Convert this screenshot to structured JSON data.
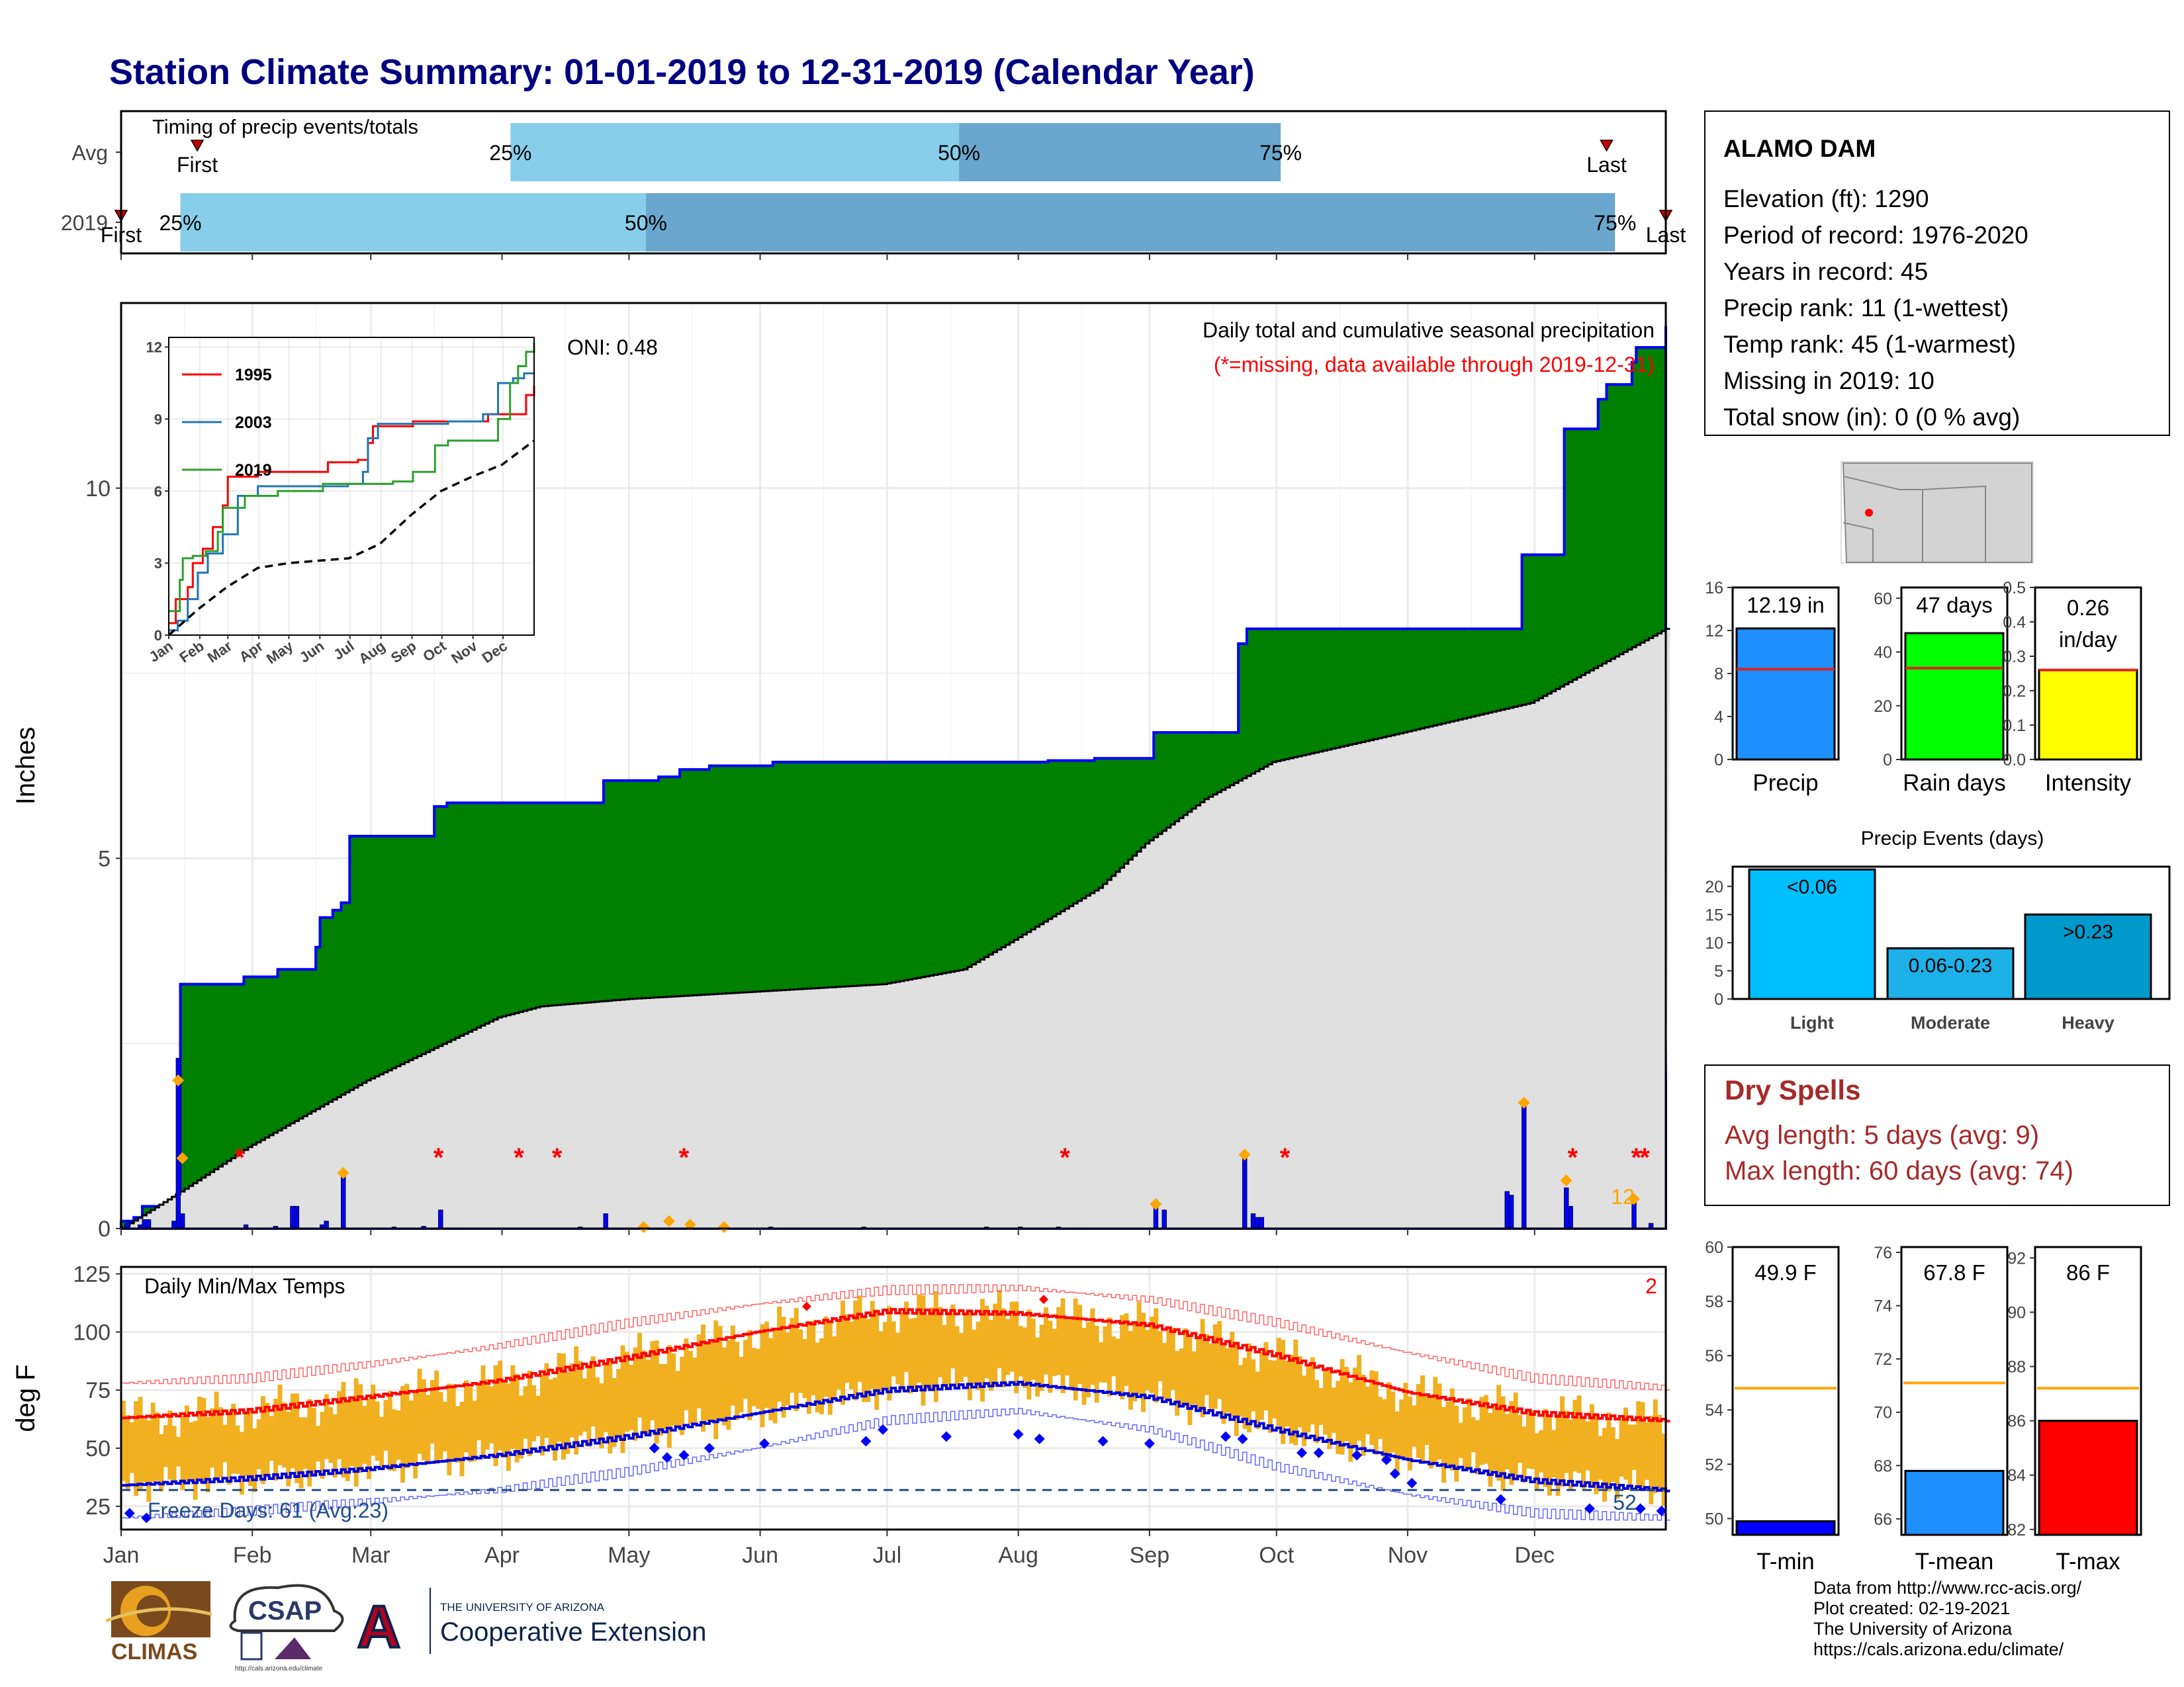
{
  "title": "Station Climate Summary: 01-01-2019 to 12-31-2019 (Calendar Year)",
  "colors": {
    "title": "#000080",
    "cum_precip": "#008000",
    "avg_precip": "#e0e0e0",
    "daily_bars": "#0000ff",
    "timing_light": "#87ceeb",
    "timing_dark": "#6aa6cd",
    "temp_bar": "#f0b020",
    "max_line": "#ff0000",
    "min_line": "#0000dd",
    "dry_spell_text": "#a52a2a"
  },
  "months": [
    "Jan",
    "Feb",
    "Mar",
    "Apr",
    "May",
    "Jun",
    "Jul",
    "Aug",
    "Sep",
    "Oct",
    "Nov",
    "Dec"
  ],
  "timing": {
    "label": "Timing of precip events/totals",
    "rows": [
      {
        "name": "Avg",
        "first": "First",
        "last": "Last",
        "first_day": 19,
        "last_day": 352,
        "p25": 93,
        "p50": 199,
        "p75": 275,
        "l25": "25%",
        "l50": "50%",
        "l75": "75%"
      },
      {
        "name": "2019",
        "first": "First",
        "last": "Last",
        "first_day": 1,
        "last_day": 366,
        "p25": 15,
        "p50": 125,
        "p75": 354,
        "l25": "25%",
        "l50": "50%",
        "l75": "75%"
      }
    ]
  },
  "precip": {
    "ylabel": "Inches",
    "ylim": [
      0,
      12.5
    ],
    "yticks": [
      0,
      5,
      10
    ],
    "oni": "ONI: 0.48",
    "header": "Daily total and cumulative seasonal precipitation",
    "note": "(*=missing, data available through 2019-12-31)",
    "corner_value": "12",
    "cumulative_steps": [
      [
        1,
        0.1
      ],
      [
        4,
        0.15
      ],
      [
        6,
        0.3
      ],
      [
        14,
        0.45
      ],
      [
        15,
        3.3
      ],
      [
        29,
        3.3
      ],
      [
        30,
        3.4
      ],
      [
        38,
        3.5
      ],
      [
        46,
        3.5
      ],
      [
        47,
        3.8
      ],
      [
        48,
        4.2
      ],
      [
        51,
        4.3
      ],
      [
        53,
        4.4
      ],
      [
        55,
        5.3
      ],
      [
        67,
        5.3
      ],
      [
        75,
        5.7
      ],
      [
        78,
        5.75
      ],
      [
        106,
        5.75
      ],
      [
        115,
        6.05
      ],
      [
        128,
        6.1
      ],
      [
        133,
        6.2
      ],
      [
        140,
        6.25
      ],
      [
        155,
        6.3
      ],
      [
        212,
        6.3
      ],
      [
        220,
        6.32
      ],
      [
        231,
        6.35
      ],
      [
        245,
        6.7
      ],
      [
        265,
        7.9
      ],
      [
        267,
        8.1
      ],
      [
        329,
        8.1
      ],
      [
        332,
        9.1
      ],
      [
        342,
        10.8
      ],
      [
        350,
        11.2
      ],
      [
        352,
        11.4
      ],
      [
        358,
        11.7
      ],
      [
        359,
        11.9
      ],
      [
        366,
        12.19
      ]
    ],
    "average_cumulative": [
      [
        1,
        0
      ],
      [
        15,
        0.5
      ],
      [
        31,
        1.1
      ],
      [
        59,
        2.0
      ],
      [
        90,
        2.85
      ],
      [
        100,
        3.0
      ],
      [
        121,
        3.1
      ],
      [
        151,
        3.2
      ],
      [
        181,
        3.3
      ],
      [
        200,
        3.5
      ],
      [
        212,
        3.9
      ],
      [
        232,
        4.6
      ],
      [
        243,
        5.2
      ],
      [
        257,
        5.8
      ],
      [
        273,
        6.3
      ],
      [
        304,
        6.7
      ],
      [
        334,
        7.1
      ],
      [
        366,
        8.1
      ]
    ],
    "daily_bars": [
      [
        2,
        0.1
      ],
      [
        5,
        0.05
      ],
      [
        6,
        0.12
      ],
      [
        7,
        0.12
      ],
      [
        13,
        0.1
      ],
      [
        14,
        2.3
      ],
      [
        15,
        0.2
      ],
      [
        30,
        0.05
      ],
      [
        37,
        0.03
      ],
      [
        41,
        0.3
      ],
      [
        42,
        0.3
      ],
      [
        48,
        0.05
      ],
      [
        49,
        0.1
      ],
      [
        53,
        0.75
      ],
      [
        65,
        0.02
      ],
      [
        72,
        0.03
      ],
      [
        76,
        0.25
      ],
      [
        109,
        0.02
      ],
      [
        115,
        0.2
      ],
      [
        124,
        0.03
      ],
      [
        135,
        0.02
      ],
      [
        154,
        0.02
      ],
      [
        176,
        0.02
      ],
      [
        205,
        0.02
      ],
      [
        213,
        0.02
      ],
      [
        222,
        0.02
      ],
      [
        245,
        0.3
      ],
      [
        247,
        0.25
      ],
      [
        266,
        1.0
      ],
      [
        268,
        0.2
      ],
      [
        269,
        0.15
      ],
      [
        270,
        0.15
      ],
      [
        328,
        0.5
      ],
      [
        329,
        0.45
      ],
      [
        332,
        1.7
      ],
      [
        342,
        0.55
      ],
      [
        343,
        0.3
      ],
      [
        358,
        0.4
      ],
      [
        362,
        0.07
      ]
    ],
    "orange_markers": [
      [
        14,
        2.0
      ],
      [
        15,
        0.95
      ],
      [
        53,
        0.75
      ],
      [
        124,
        0.02
      ],
      [
        130,
        0.1
      ],
      [
        135,
        0.05
      ],
      [
        143,
        0.02
      ],
      [
        245,
        0.33
      ],
      [
        266,
        1.0
      ],
      [
        332,
        1.7
      ],
      [
        342,
        0.65
      ],
      [
        358,
        0.4
      ]
    ],
    "missing_markers": [
      [
        29,
        1.0
      ],
      [
        76,
        1.0
      ],
      [
        95,
        1.0
      ],
      [
        104,
        1.0
      ],
      [
        134,
        1.0
      ],
      [
        224,
        1.0
      ],
      [
        276,
        1.0
      ],
      [
        344,
        1.0
      ],
      [
        359,
        1.0
      ],
      [
        361,
        1.0
      ]
    ]
  },
  "inset": {
    "ylim": [
      0,
      12
    ],
    "yticks": [
      0,
      3,
      6,
      9,
      12
    ],
    "legend": [
      "1995",
      "2003",
      "2019"
    ],
    "colors": [
      "#ff0000",
      "#1f77b4",
      "#2ca02c"
    ],
    "series": [
      [
        [
          1,
          0.5
        ],
        [
          8,
          1.5
        ],
        [
          20,
          2.0
        ],
        [
          25,
          3.0
        ],
        [
          35,
          3.6
        ],
        [
          45,
          4.5
        ],
        [
          55,
          5.4
        ],
        [
          60,
          6.6
        ],
        [
          90,
          6.8
        ],
        [
          150,
          6.8
        ],
        [
          160,
          7.2
        ],
        [
          190,
          7.3
        ],
        [
          200,
          8.0
        ],
        [
          205,
          8.7
        ],
        [
          235,
          8.7
        ],
        [
          245,
          8.9
        ],
        [
          300,
          8.9
        ],
        [
          320,
          9.2
        ],
        [
          345,
          9.2
        ],
        [
          358,
          10.0
        ],
        [
          366,
          10.4
        ]
      ],
      [
        [
          1,
          0.2
        ],
        [
          10,
          0.6
        ],
        [
          20,
          1.5
        ],
        [
          30,
          2.6
        ],
        [
          40,
          3.4
        ],
        [
          55,
          4.2
        ],
        [
          70,
          5.8
        ],
        [
          90,
          6.2
        ],
        [
          150,
          6.2
        ],
        [
          180,
          6.3
        ],
        [
          195,
          6.8
        ],
        [
          200,
          8.2
        ],
        [
          210,
          8.8
        ],
        [
          280,
          8.9
        ],
        [
          315,
          9.2
        ],
        [
          330,
          10.5
        ],
        [
          345,
          10.7
        ],
        [
          356,
          10.9
        ],
        [
          366,
          10.9
        ]
      ],
      [
        [
          1,
          1.0
        ],
        [
          12,
          2.3
        ],
        [
          15,
          3.2
        ],
        [
          25,
          3.3
        ],
        [
          38,
          3.5
        ],
        [
          50,
          4.3
        ],
        [
          55,
          5.3
        ],
        [
          77,
          5.8
        ],
        [
          110,
          6.0
        ],
        [
          155,
          6.3
        ],
        [
          225,
          6.4
        ],
        [
          245,
          6.8
        ],
        [
          267,
          7.9
        ],
        [
          280,
          8.1
        ],
        [
          330,
          9.0
        ],
        [
          342,
          10.5
        ],
        [
          350,
          11.2
        ],
        [
          358,
          11.8
        ],
        [
          366,
          12.2
        ]
      ]
    ],
    "average": [
      [
        1,
        0
      ],
      [
        31,
        1.1
      ],
      [
        59,
        2.0
      ],
      [
        90,
        2.8
      ],
      [
        121,
        3.0
      ],
      [
        181,
        3.2
      ],
      [
        212,
        3.8
      ],
      [
        243,
        5.0
      ],
      [
        273,
        6.0
      ],
      [
        304,
        6.6
      ],
      [
        334,
        7.1
      ],
      [
        366,
        8.1
      ]
    ]
  },
  "temps": {
    "ylabel": "deg F",
    "header": "Daily Min/Max Temps",
    "ylim": [
      15,
      128
    ],
    "yticks": [
      25,
      50,
      75,
      100,
      125
    ],
    "freeze_label": "Freeze Days: 61 (Avg:23)",
    "freeze_count": "52",
    "corner_count": "2",
    "freeze_line": 32,
    "max_avg_curve": [
      [
        1,
        63
      ],
      [
        31,
        66
      ],
      [
        59,
        72
      ],
      [
        90,
        79
      ],
      [
        121,
        89
      ],
      [
        151,
        100
      ],
      [
        182,
        109
      ],
      [
        213,
        108
      ],
      [
        244,
        103
      ],
      [
        274,
        90
      ],
      [
        305,
        74
      ],
      [
        335,
        65
      ],
      [
        366,
        62
      ]
    ],
    "min_avg_curve": [
      [
        1,
        34
      ],
      [
        31,
        37
      ],
      [
        59,
        41
      ],
      [
        90,
        47
      ],
      [
        121,
        55
      ],
      [
        151,
        65
      ],
      [
        182,
        75
      ],
      [
        213,
        78
      ],
      [
        244,
        72
      ],
      [
        274,
        58
      ],
      [
        305,
        45
      ],
      [
        335,
        36
      ],
      [
        366,
        32
      ]
    ],
    "record_max_curve": [
      [
        1,
        78
      ],
      [
        31,
        80
      ],
      [
        59,
        86
      ],
      [
        90,
        94
      ],
      [
        121,
        104
      ],
      [
        151,
        112
      ],
      [
        182,
        118
      ],
      [
        213,
        119
      ],
      [
        244,
        114
      ],
      [
        274,
        104
      ],
      [
        305,
        91
      ],
      [
        335,
        80
      ],
      [
        366,
        76
      ]
    ],
    "record_min_curve": [
      [
        1,
        20
      ],
      [
        31,
        23
      ],
      [
        59,
        27
      ],
      [
        90,
        32
      ],
      [
        121,
        40
      ],
      [
        151,
        50
      ],
      [
        182,
        62
      ],
      [
        213,
        66
      ],
      [
        244,
        58
      ],
      [
        274,
        42
      ],
      [
        305,
        30
      ],
      [
        335,
        22
      ],
      [
        366,
        20
      ]
    ],
    "max_record_points": [
      [
        163,
        111
      ],
      [
        219,
        114
      ]
    ],
    "min_record_points": [
      [
        3,
        22
      ],
      [
        7,
        20
      ],
      [
        127,
        50
      ],
      [
        130,
        46
      ],
      [
        134,
        47
      ],
      [
        140,
        50
      ],
      [
        153,
        52
      ],
      [
        177,
        53
      ],
      [
        181,
        58
      ],
      [
        196,
        55
      ],
      [
        213,
        56
      ],
      [
        218,
        54
      ],
      [
        233,
        53
      ],
      [
        244,
        52
      ],
      [
        262,
        55
      ],
      [
        266,
        54
      ],
      [
        280,
        48
      ],
      [
        284,
        48
      ],
      [
        293,
        47
      ],
      [
        300,
        45
      ],
      [
        302,
        39
      ],
      [
        306,
        35
      ],
      [
        327,
        28
      ],
      [
        348,
        24
      ],
      [
        360,
        24
      ],
      [
        365,
        23
      ]
    ]
  },
  "station": {
    "name": "ALAMO DAM",
    "lines": [
      "Elevation (ft): 1290",
      "Period of record: 1976-2020",
      "Years in record: 45",
      "Precip rank: 11 (1-wettest)",
      "Temp rank: 45 (1-warmest)",
      "Missing in 2019: 10",
      "Total snow (in): 0 (0 % avg)"
    ]
  },
  "mini_bars": [
    {
      "label": "Precip",
      "value": 12.19,
      "value_text": "12.19 in",
      "avg": 8.4,
      "ylim": [
        0,
        16
      ],
      "ticks": [
        0,
        4,
        8,
        12,
        16
      ],
      "color": "#1e90ff"
    },
    {
      "label": "Rain days",
      "value": 47,
      "value_text": "47 days",
      "avg": 34,
      "ylim": [
        0,
        64
      ],
      "ticks": [
        0,
        20,
        40,
        60
      ],
      "color": "#00ff00"
    },
    {
      "label": "Intensity",
      "value": 0.26,
      "value_text": "0.26 in/day",
      "avg": 0.26,
      "ylim": [
        0,
        0.5
      ],
      "ticks": [
        0.0,
        0.1,
        0.2,
        0.3,
        0.4,
        0.5
      ],
      "color": "#ffff00"
    }
  ],
  "events": {
    "title": "Precip Events (days)",
    "categories": [
      "Light",
      "Moderate",
      "Heavy"
    ],
    "labels": [
      "<0.06",
      "0.06-0.23",
      ">0.23"
    ],
    "values": [
      23,
      9,
      15
    ],
    "ylim": [
      0,
      23.5
    ],
    "yticks": [
      0,
      5,
      10,
      15,
      20
    ],
    "colors": [
      "#00bfff",
      "#1eb0e8",
      "#0099cc"
    ]
  },
  "dry_spells": {
    "title": "Dry Spells",
    "avg": "Avg length: 5 days (avg: 9)",
    "max": "Max length: 60 days (avg: 74)"
  },
  "temp_bars": [
    {
      "label": "T-min",
      "value": 49.9,
      "value_text": "49.9 F",
      "avg": 54.8,
      "ylim": [
        49.4,
        60
      ],
      "ticks": [
        50,
        52,
        54,
        56,
        58,
        60
      ],
      "color": "#0000ff"
    },
    {
      "label": "T-mean",
      "value": 67.8,
      "value_text": "67.8 F",
      "avg": 71.1,
      "ylim": [
        65.4,
        76.2
      ],
      "ticks": [
        66,
        68,
        70,
        72,
        74,
        76
      ],
      "color": "#1e90ff"
    },
    {
      "label": "T-max",
      "value": 86,
      "value_text": "86 F",
      "avg": 87.2,
      "ylim": [
        81.8,
        92.4
      ],
      "ticks": [
        82,
        84,
        86,
        88,
        90,
        92
      ],
      "color": "#ff0000"
    }
  ],
  "credits": [
    "Data from http://www.rcc-acis.org/",
    "Plot created: 02-19-2021",
    "The University of Arizona",
    "https://cals.arizona.edu/climate/"
  ],
  "logos": {
    "climas": "CLIMAS",
    "csap": "CSAP",
    "csap_url": "http://cals.arizona.edu/climate",
    "ua_line1": "THE UNIVERSITY OF ARIZONA",
    "ua_line2": "Cooperative Extension",
    "ua_letter": "A"
  }
}
